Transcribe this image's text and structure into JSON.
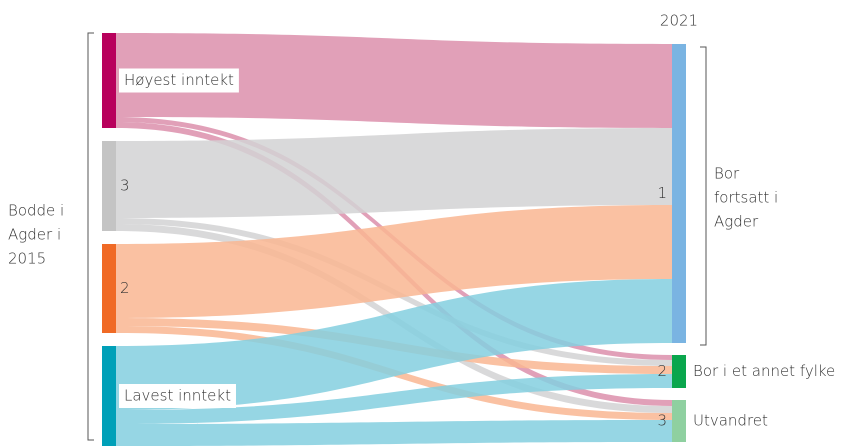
{
  "chart_data": {
    "type": "sankey",
    "header": "2021",
    "left_label": [
      "Bodde i",
      "Agder i",
      "2015"
    ],
    "right_label": [
      "Bor",
      "fortsatt i",
      "Agder"
    ],
    "nodes": [
      {
        "label": "Høyest inntekt",
        "color": "#b8005c",
        "link_color": "#dc8fab",
        "side": "left",
        "boxed": true
      },
      {
        "label": "3",
        "color": "#c4c4c4",
        "link_color": "#d2d2d3",
        "side": "left",
        "boxed": false
      },
      {
        "label": "2",
        "color": "#f06a25",
        "link_color": "#f9b692",
        "side": "left",
        "boxed": false
      },
      {
        "label": "Lavest inntekt",
        "color": "#00a0b8",
        "link_color": "#84cfdf",
        "side": "left",
        "boxed": true
      },
      {
        "label": "1",
        "color": "#7ab4e2",
        "side": "right"
      },
      {
        "label": "2",
        "color": "#0aa64d",
        "side": "right",
        "note": "Bor i et annet fylke"
      },
      {
        "label": "3",
        "color": "#8fd0a0",
        "side": "right",
        "note": "Utvandret"
      }
    ],
    "links": [
      {
        "source": 0,
        "target": 4,
        "value": 84
      },
      {
        "source": 0,
        "target": 5,
        "value": 5
      },
      {
        "source": 0,
        "target": 6,
        "value": 6
      },
      {
        "source": 1,
        "target": 4,
        "value": 77
      },
      {
        "source": 1,
        "target": 5,
        "value": 6
      },
      {
        "source": 1,
        "target": 6,
        "value": 7
      },
      {
        "source": 2,
        "target": 4,
        "value": 74
      },
      {
        "source": 2,
        "target": 5,
        "value": 8
      },
      {
        "source": 2,
        "target": 6,
        "value": 7
      },
      {
        "source": 3,
        "target": 4,
        "value": 64
      },
      {
        "source": 3,
        "target": 5,
        "value": 14
      },
      {
        "source": 3,
        "target": 6,
        "value": 22
      }
    ]
  }
}
